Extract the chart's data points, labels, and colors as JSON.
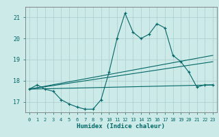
{
  "title": "",
  "xlabel": "Humidex (Indice chaleur)",
  "background_color": "#cceae8",
  "grid_color": "#aacccc",
  "line_color": "#006666",
  "xlim": [
    -0.5,
    23.5
  ],
  "ylim": [
    16.5,
    21.5
  ],
  "yticks": [
    17,
    18,
    19,
    20,
    21
  ],
  "xticks": [
    0,
    1,
    2,
    3,
    4,
    5,
    6,
    7,
    8,
    9,
    10,
    11,
    12,
    13,
    14,
    15,
    16,
    17,
    18,
    19,
    20,
    21,
    22,
    23
  ],
  "series": {
    "main": [
      [
        0,
        17.6
      ],
      [
        1,
        17.8
      ],
      [
        2,
        17.6
      ],
      [
        3,
        17.5
      ],
      [
        4,
        17.1
      ],
      [
        5,
        16.9
      ],
      [
        6,
        16.75
      ],
      [
        7,
        16.65
      ],
      [
        8,
        16.65
      ],
      [
        9,
        17.1
      ],
      [
        10,
        18.4
      ],
      [
        11,
        20.0
      ],
      [
        12,
        21.2
      ],
      [
        13,
        20.3
      ],
      [
        14,
        20.0
      ],
      [
        15,
        20.2
      ],
      [
        16,
        20.7
      ],
      [
        17,
        20.5
      ],
      [
        18,
        19.2
      ],
      [
        19,
        18.9
      ],
      [
        20,
        18.4
      ],
      [
        21,
        17.7
      ],
      [
        22,
        17.8
      ],
      [
        23,
        17.8
      ]
    ],
    "line2": [
      [
        0,
        17.6
      ],
      [
        23,
        17.8
      ]
    ],
    "line3": [
      [
        0,
        17.6
      ],
      [
        23,
        18.9
      ]
    ],
    "line4": [
      [
        0,
        17.6
      ],
      [
        23,
        19.2
      ]
    ]
  }
}
